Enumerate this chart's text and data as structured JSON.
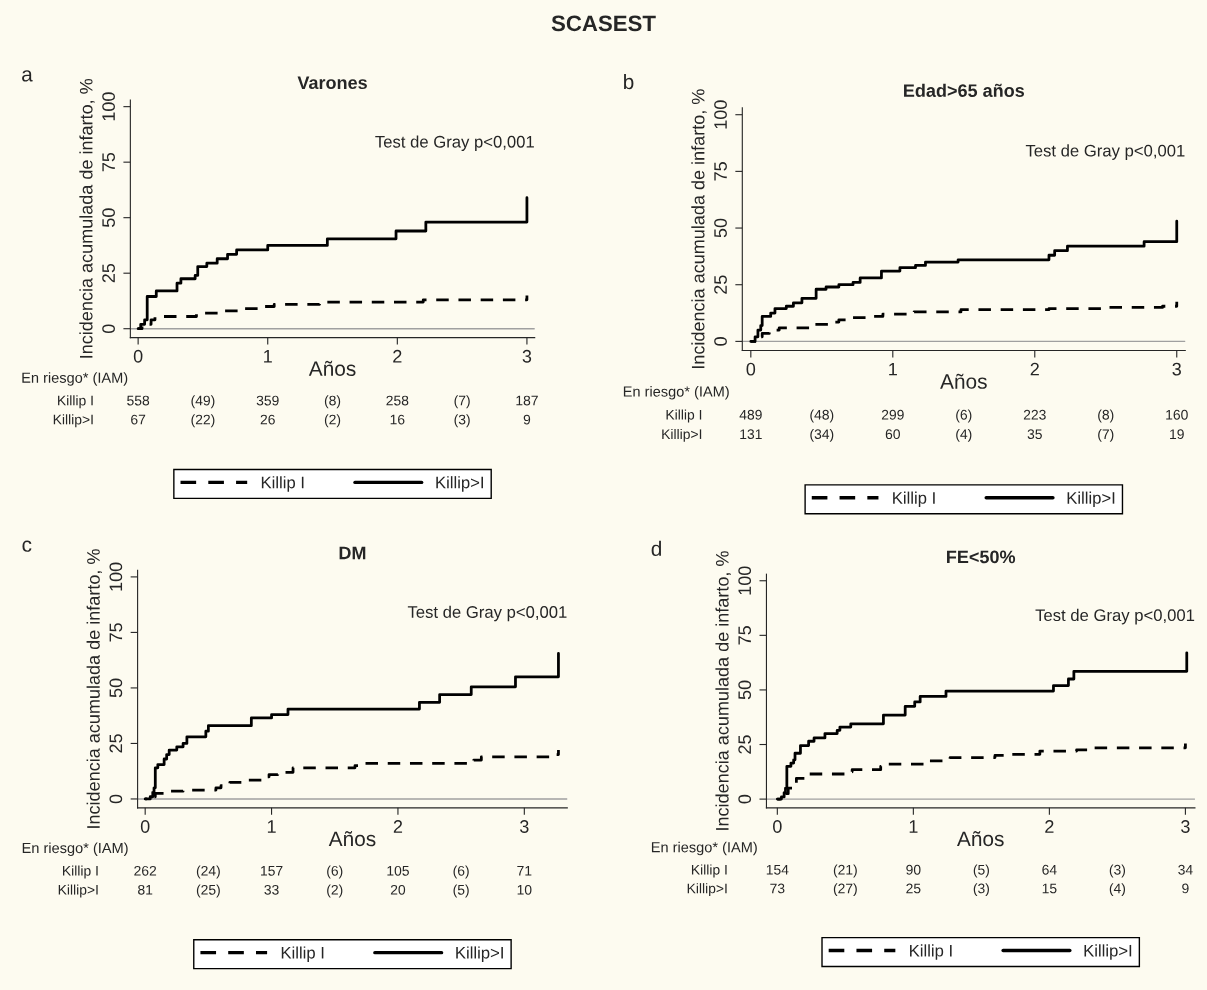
{
  "chart_data": [
    {
      "type": "step",
      "title": "Varones",
      "xlabel": "Años",
      "ylabel": "Incidencia acumulada de infarto, %",
      "xlim": [
        -0.06,
        3.06
      ],
      "ylim": [
        -4,
        103
      ],
      "xticks": [
        0,
        1,
        2,
        3
      ],
      "yticks": [
        0,
        25,
        50,
        75,
        100
      ],
      "legend": "bottom",
      "ref_lines": [
        {
          "axis": "y",
          "value": 0,
          "color": "#a0a0a0"
        }
      ],
      "series": [
        {
          "name": "Killip I",
          "color": "#000000",
          "line_style": "dashed",
          "x": [
            0,
            0.03,
            0.1,
            0.13,
            0.45,
            0.63,
            0.8,
            0.97,
            1.05,
            1.4,
            2.2,
            3.0
          ],
          "values": [
            0,
            2,
            4,
            5.5,
            7,
            8,
            9,
            10,
            11,
            12,
            13,
            15
          ]
        },
        {
          "name": "Killip>I",
          "color": "#000000",
          "line_style": "solid",
          "x": [
            0,
            0.02,
            0.05,
            0.07,
            0.14,
            0.3,
            0.33,
            0.44,
            0.46,
            0.53,
            0.61,
            0.69,
            0.76,
            1.0,
            1.46,
            1.99,
            2.22,
            3.0
          ],
          "values": [
            0,
            2,
            4,
            14.5,
            17,
            20.5,
            22.5,
            24,
            28,
            29.5,
            31.5,
            33.5,
            35.5,
            37.5,
            40.5,
            44,
            48,
            59
          ]
        }
      ],
      "annotations": [
        "a",
        "Test de Gray p<0,001",
        "En riesgo* (IAM)",
        "Killip I",
        "558",
        "(49)",
        "359",
        "(8)",
        "258",
        "(7)",
        "187",
        "Killip>I",
        "67",
        "(22)",
        "26",
        "(2)",
        "16",
        "(3)",
        "9",
        "SCASEST"
      ]
    },
    {
      "type": "step",
      "title": "Edad>65 años",
      "xlabel": "Años",
      "ylabel": "Incidencia acumulada de infarto, %",
      "xlim": [
        -0.06,
        3.06
      ],
      "ylim": [
        -4,
        103
      ],
      "xticks": [
        0,
        1,
        2,
        3
      ],
      "yticks": [
        0,
        25,
        50,
        75,
        100
      ],
      "legend": "bottom",
      "ref_lines": [
        {
          "axis": "y",
          "value": 0,
          "color": "#a0a0a0"
        }
      ],
      "series": [
        {
          "name": "Killip I",
          "color": "#000000",
          "line_style": "dashed",
          "x": [
            0,
            0.05,
            0.08,
            0.13,
            0.2,
            0.45,
            0.57,
            0.62,
            0.7,
            0.85,
            0.93,
            1.1,
            1.15,
            1.48,
            2.1,
            2.5,
            2.9,
            3.0
          ],
          "values": [
            0,
            2,
            3.5,
            5,
            6,
            7.5,
            8.5,
            9.5,
            10.5,
            11,
            12,
            12.5,
            13,
            14,
            14.5,
            15,
            15.5,
            17.5
          ]
        },
        {
          "name": "Killip>I",
          "color": "#000000",
          "line_style": "solid",
          "x": [
            0,
            0.03,
            0.05,
            0.07,
            0.08,
            0.14,
            0.17,
            0.25,
            0.3,
            0.36,
            0.46,
            0.53,
            0.62,
            0.72,
            0.77,
            0.92,
            1.05,
            1.16,
            1.23,
            1.46,
            2.1,
            2.14,
            2.23,
            2.77,
            3.0
          ],
          "values": [
            0,
            2,
            5,
            7,
            11,
            12.5,
            14.5,
            15.5,
            17,
            19,
            23,
            24,
            25,
            26,
            28,
            31,
            32.5,
            33.5,
            35,
            36,
            38,
            40,
            42,
            44,
            53
          ]
        }
      ],
      "annotations": [
        "b",
        "Test de Gray p<0,001",
        "En riesgo* (IAM)",
        "Killip I",
        "489",
        "(48)",
        "299",
        "(6)",
        "223",
        "(8)",
        "160",
        "Killip>I",
        "131",
        "(34)",
        "60",
        "(4)",
        "35",
        "(7)",
        "19"
      ]
    },
    {
      "type": "step",
      "title": "DM",
      "xlabel": "Años",
      "ylabel": "Incidencia acumulada de infarto, %",
      "xlim": [
        -0.06,
        3.34
      ],
      "ylim": [
        -4,
        103
      ],
      "xticks": [
        0,
        1,
        2,
        3
      ],
      "yticks": [
        0,
        25,
        50,
        75,
        100
      ],
      "legend": "bottom",
      "ref_lines": [
        {
          "axis": "y",
          "value": 0,
          "color": "#a0a0a0"
        }
      ],
      "series": [
        {
          "name": "Killip I",
          "color": "#000000",
          "line_style": "dashed",
          "x": [
            0,
            0.04,
            0.08,
            0.2,
            0.3,
            0.56,
            0.6,
            0.67,
            0.8,
            0.92,
            0.98,
            1.05,
            1.17,
            1.66,
            1.72,
            2.6,
            2.66,
            3.25,
            3.27
          ],
          "values": [
            0,
            1,
            2.5,
            3.5,
            4,
            5,
            6,
            7.5,
            8.5,
            10,
            11,
            12,
            14,
            15,
            16,
            17.5,
            19,
            20,
            22
          ]
        },
        {
          "name": "Killip>I",
          "color": "#000000",
          "line_style": "solid",
          "x": [
            0,
            0.04,
            0.06,
            0.07,
            0.08,
            0.1,
            0.15,
            0.17,
            0.19,
            0.25,
            0.3,
            0.33,
            0.48,
            0.5,
            0.84,
            1.0,
            1.13,
            2.17,
            2.33,
            2.58,
            2.93,
            3.27
          ],
          "values": [
            0,
            1,
            3,
            5,
            14,
            15.5,
            18,
            20,
            22,
            23.5,
            25,
            28,
            30.5,
            33,
            36.5,
            38,
            40.5,
            43.5,
            47,
            50.5,
            55,
            65.5
          ]
        }
      ],
      "annotations": [
        "c",
        "Test de Gray p<0,001",
        "En riesgo* (IAM)",
        "Killip I",
        "262",
        "(24)",
        "157",
        "(6)",
        "105",
        "(6)",
        "71",
        "Killip>I",
        "81",
        "(25)",
        "33",
        "(2)",
        "20",
        "(5)",
        "10"
      ]
    },
    {
      "type": "step",
      "title": "FE<50%",
      "xlabel": "Años",
      "ylabel": "Incidencia acumulada de infarto, %",
      "xlim": [
        -0.08,
        3.07
      ],
      "ylim": [
        -4,
        103
      ],
      "xticks": [
        0,
        1,
        2,
        3
      ],
      "yticks": [
        0,
        25,
        50,
        75,
        100
      ],
      "legend": "bottom",
      "ref_lines": [
        {
          "axis": "y",
          "value": 0,
          "color": "#a0a0a0"
        }
      ],
      "series": [
        {
          "name": "Killip I",
          "color": "#000000",
          "line_style": "dashed",
          "x": [
            0,
            0.04,
            0.06,
            0.08,
            0.11,
            0.14,
            0.22,
            0.52,
            0.55,
            0.76,
            0.8,
            1.1,
            1.27,
            1.6,
            1.7,
            1.93,
            2.2,
            2.3,
            3.0
          ],
          "values": [
            0,
            1,
            2.5,
            5,
            6.5,
            9.5,
            11.5,
            12.5,
            13.5,
            15,
            16,
            17.5,
            19,
            20,
            20.5,
            22,
            22.5,
            23.5,
            25.5
          ]
        },
        {
          "name": "Killip>I",
          "color": "#000000",
          "line_style": "solid",
          "x": [
            0,
            0.03,
            0.05,
            0.06,
            0.07,
            0.1,
            0.12,
            0.13,
            0.17,
            0.23,
            0.27,
            0.35,
            0.44,
            0.46,
            0.54,
            0.78,
            0.94,
            1.01,
            1.05,
            1.24,
            2.03,
            2.14,
            2.18,
            3.01
          ],
          "values": [
            0,
            1,
            3,
            5,
            15,
            16.5,
            18,
            21,
            24.5,
            26.5,
            28,
            30,
            31.5,
            33,
            34.5,
            38.5,
            42.5,
            44.5,
            47,
            49.5,
            52,
            55,
            58.5,
            67
          ]
        }
      ],
      "annotations": [
        "d",
        "Test de Gray p<0,001",
        "En riesgo* (IAM)",
        "Killip I",
        "154",
        "(21)",
        "90",
        "(5)",
        "64",
        "(3)",
        "34",
        "Killip>I",
        "73",
        "(27)",
        "25",
        "(3)",
        "15",
        "(4)",
        "9"
      ]
    }
  ]
}
